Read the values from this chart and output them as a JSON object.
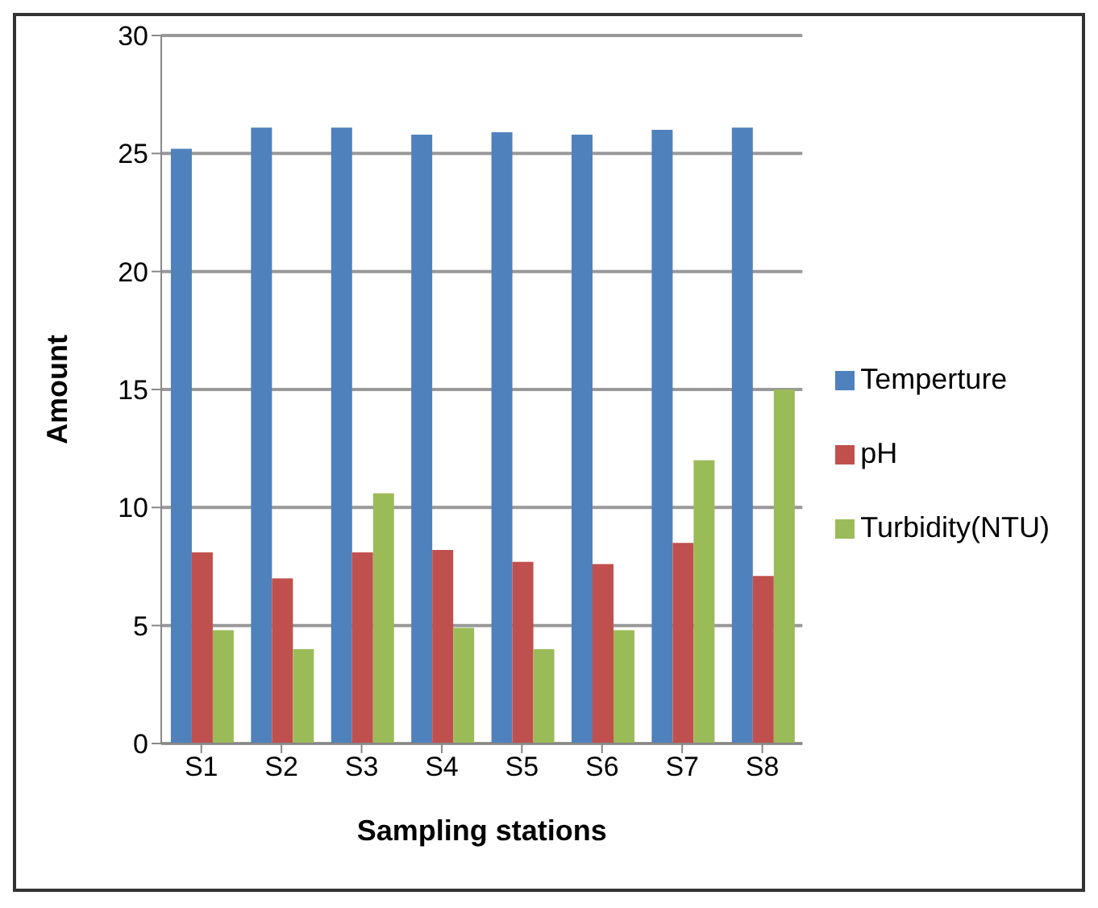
{
  "chart_data": {
    "type": "bar",
    "xlabel": "Sampling stations",
    "ylabel": "Amount",
    "categories": [
      "S1",
      "S2",
      "S3",
      "S4",
      "S5",
      "S6",
      "S7",
      "S8"
    ],
    "series": [
      {
        "name": "Temperture",
        "color": "#4f81bd",
        "values": [
          25.2,
          26.1,
          26.1,
          25.8,
          25.9,
          25.8,
          26.0,
          26.1
        ]
      },
      {
        "name": "pH",
        "color": "#c0504d",
        "values": [
          8.1,
          7.0,
          8.1,
          8.2,
          7.7,
          7.6,
          8.5,
          7.1
        ]
      },
      {
        "name": "Turbidity(NTU)",
        "color": "#9bbb59",
        "values": [
          4.8,
          4.0,
          10.6,
          4.9,
          4.0,
          4.8,
          12.0,
          15.0
        ]
      }
    ],
    "ylim": [
      0,
      30
    ],
    "yticks": [
      0,
      5,
      10,
      15,
      20,
      25,
      30
    ],
    "grid": "y",
    "legend": "right"
  }
}
